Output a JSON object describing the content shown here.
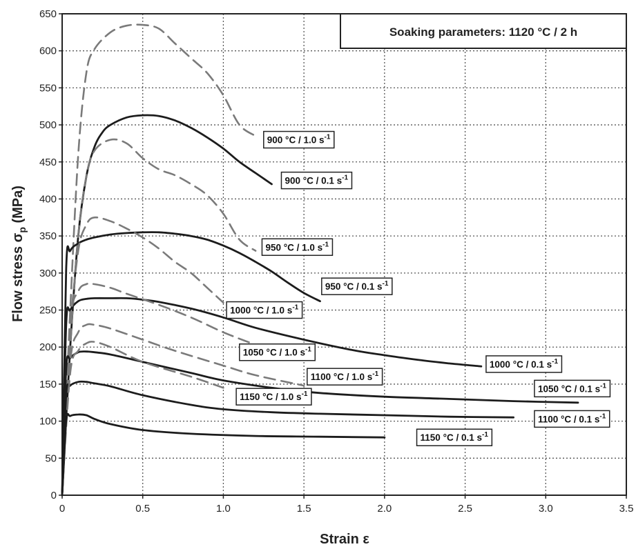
{
  "chart_data": {
    "type": "line",
    "title_box": "Soaking parameters: 1120 °C / 2 h",
    "xlabel": "Strain ε",
    "ylabel": "Flow stress σp (MPa)",
    "ylabel_main": "Flow stress σ",
    "ylabel_sub": "p",
    "ylabel_unit": " (MPa)",
    "xlim": [
      0,
      3.5
    ],
    "ylim": [
      0,
      650
    ],
    "x_ticks": [
      0,
      0.5,
      1.0,
      1.5,
      2.0,
      2.5,
      3.0,
      3.5
    ],
    "x_tick_labels": [
      "0",
      "0.5",
      "1.0",
      "1.5",
      "2.0",
      "2.5",
      "3.0",
      "3.5"
    ],
    "y_ticks": [
      0,
      50,
      100,
      150,
      200,
      250,
      300,
      350,
      400,
      450,
      500,
      550,
      600,
      650
    ],
    "y_tick_labels": [
      "0",
      "50",
      "100",
      "150",
      "200",
      "250",
      "300",
      "350",
      "400",
      "450",
      "500",
      "550",
      "600",
      "650"
    ],
    "grid": true,
    "colors": {
      "strain_rate_1_0": "#7a7a7a",
      "strain_rate_0_1": "#1c1c1c",
      "grid": "#555555",
      "axis": "#222222"
    },
    "series": [
      {
        "label_main": "900 °C / 1.0 s",
        "label_sup": "-1",
        "style": "dashed",
        "x": [
          0,
          0.05,
          0.1,
          0.15,
          0.2,
          0.3,
          0.4,
          0.5,
          0.6,
          0.7,
          0.8,
          0.9,
          1.0,
          1.1,
          1.2
        ],
        "y": [
          0,
          250,
          460,
          570,
          602,
          625,
          634,
          635,
          630,
          610,
          590,
          570,
          540,
          500,
          485
        ],
        "label_at": [
          1.25,
          480
        ]
      },
      {
        "label_main": "900 °C / 0.1 s",
        "label_sup": "-1",
        "style": "solid",
        "x": [
          0,
          0.05,
          0.1,
          0.15,
          0.2,
          0.25,
          0.3,
          0.4,
          0.5,
          0.6,
          0.7,
          0.8,
          0.9,
          1.0,
          1.1,
          1.2,
          1.3
        ],
        "y": [
          0,
          200,
          350,
          430,
          470,
          490,
          500,
          510,
          513,
          512,
          506,
          496,
          483,
          468,
          450,
          435,
          420
        ],
        "label_at": [
          1.36,
          425
        ]
      },
      {
        "label_main": "950 °C / 1.0 s",
        "label_sup": "-1",
        "style": "dashed",
        "x": [
          0,
          0.05,
          0.1,
          0.15,
          0.2,
          0.3,
          0.4,
          0.5,
          0.6,
          0.7,
          0.8,
          0.9,
          1.0,
          1.1,
          1.2
        ],
        "y": [
          0,
          200,
          350,
          430,
          465,
          480,
          475,
          455,
          440,
          432,
          420,
          405,
          380,
          345,
          330
        ],
        "label_at": [
          1.24,
          335
        ]
      },
      {
        "label_main": "950 °C / 0.1 s",
        "label_sup": "-1",
        "style": "solid",
        "x": [
          0,
          0.025,
          0.05,
          0.1,
          0.15,
          0.2,
          0.3,
          0.4,
          0.5,
          0.6,
          0.7,
          0.8,
          0.9,
          1.0,
          1.1,
          1.2,
          1.3,
          1.4,
          1.5,
          1.6
        ],
        "y": [
          0,
          305,
          330,
          340,
          345,
          348,
          352,
          354,
          355,
          355,
          353,
          350,
          345,
          337,
          327,
          315,
          302,
          287,
          273,
          262
        ],
        "label_at": [
          1.61,
          282
        ]
      },
      {
        "label_main": "1000 °C / 1.0 s",
        "label_sup": "-1",
        "style": "dashed",
        "x": [
          0,
          0.05,
          0.1,
          0.15,
          0.2,
          0.3,
          0.4,
          0.5,
          0.6,
          0.7,
          0.8,
          0.9,
          1.0
        ],
        "y": [
          0,
          220,
          330,
          365,
          375,
          370,
          360,
          348,
          333,
          315,
          300,
          280,
          260
        ],
        "label_at": [
          1.02,
          250
        ]
      },
      {
        "label_main": "1000 °C / 0.1 s",
        "label_sup": "-1",
        "style": "solid",
        "x": [
          0,
          0.025,
          0.05,
          0.1,
          0.15,
          0.2,
          0.3,
          0.4,
          0.5,
          0.6,
          0.8,
          1.0,
          1.2,
          1.5,
          1.8,
          2.0,
          2.2,
          2.4,
          2.6
        ],
        "y": [
          0,
          230,
          250,
          262,
          265,
          266,
          266,
          266,
          264,
          261,
          252,
          240,
          226,
          210,
          196,
          189,
          183,
          178,
          174
        ],
        "label_at": [
          2.63,
          177
        ]
      },
      {
        "label_main": "1050 °C / 1.0 s",
        "label_sup": "-1",
        "style": "dashed",
        "x": [
          0,
          0.05,
          0.1,
          0.15,
          0.2,
          0.3,
          0.4,
          0.6,
          0.8,
          1.0,
          1.2
        ],
        "y": [
          0,
          230,
          275,
          285,
          285,
          280,
          272,
          257,
          240,
          220,
          203
        ],
        "label_at": [
          1.1,
          193
        ]
      },
      {
        "label_main": "1050 °C / 0.1 s",
        "label_sup": "-1",
        "style": "solid",
        "x": [
          0,
          0.025,
          0.05,
          0.1,
          0.15,
          0.2,
          0.3,
          0.5,
          0.8,
          1.0,
          1.3,
          1.6,
          2.0,
          2.4,
          2.8,
          3.2
        ],
        "y": [
          0,
          170,
          185,
          193,
          194,
          193,
          190,
          180,
          165,
          155,
          145,
          138,
          133,
          130,
          127,
          125
        ],
        "label_at": [
          2.93,
          144
        ]
      },
      {
        "label_main": "1100 °C / 1.0 s",
        "label_sup": "-1",
        "style": "dashed",
        "x": [
          0,
          0.05,
          0.1,
          0.15,
          0.2,
          0.3,
          0.5,
          0.7,
          1.0,
          1.2,
          1.5
        ],
        "y": [
          0,
          180,
          220,
          230,
          230,
          225,
          210,
          195,
          175,
          162,
          148
        ],
        "label_at": [
          1.52,
          160
        ]
      },
      {
        "label_main": "1100 °C / 0.1 s",
        "label_sup": "-1",
        "style": "solid",
        "x": [
          0,
          0.025,
          0.05,
          0.1,
          0.15,
          0.2,
          0.3,
          0.5,
          0.8,
          1.0,
          1.3,
          1.6,
          2.0,
          2.4,
          2.8
        ],
        "y": [
          0,
          135,
          148,
          153,
          153,
          151,
          147,
          135,
          122,
          116,
          112,
          110,
          108,
          106,
          105
        ],
        "label_at": [
          2.93,
          103
        ]
      },
      {
        "label_main": "1150 °C / 1.0 s",
        "label_sup": "-1",
        "style": "dashed",
        "x": [
          0,
          0.05,
          0.1,
          0.15,
          0.2,
          0.3,
          0.5,
          0.8,
          1.0
        ],
        "y": [
          0,
          165,
          195,
          205,
          207,
          200,
          180,
          160,
          145
        ],
        "label_at": [
          1.08,
          133
        ]
      },
      {
        "label_main": "1150 °C / 0.1 s",
        "label_sup": "-1",
        "style": "solid",
        "x": [
          0,
          0.025,
          0.05,
          0.1,
          0.15,
          0.2,
          0.3,
          0.5,
          0.8,
          1.2,
          1.6,
          2.0
        ],
        "y": [
          0,
          100,
          107,
          109,
          108,
          103,
          96,
          88,
          83,
          80,
          79,
          78
        ],
        "label_at": [
          2.2,
          78
        ]
      }
    ]
  }
}
